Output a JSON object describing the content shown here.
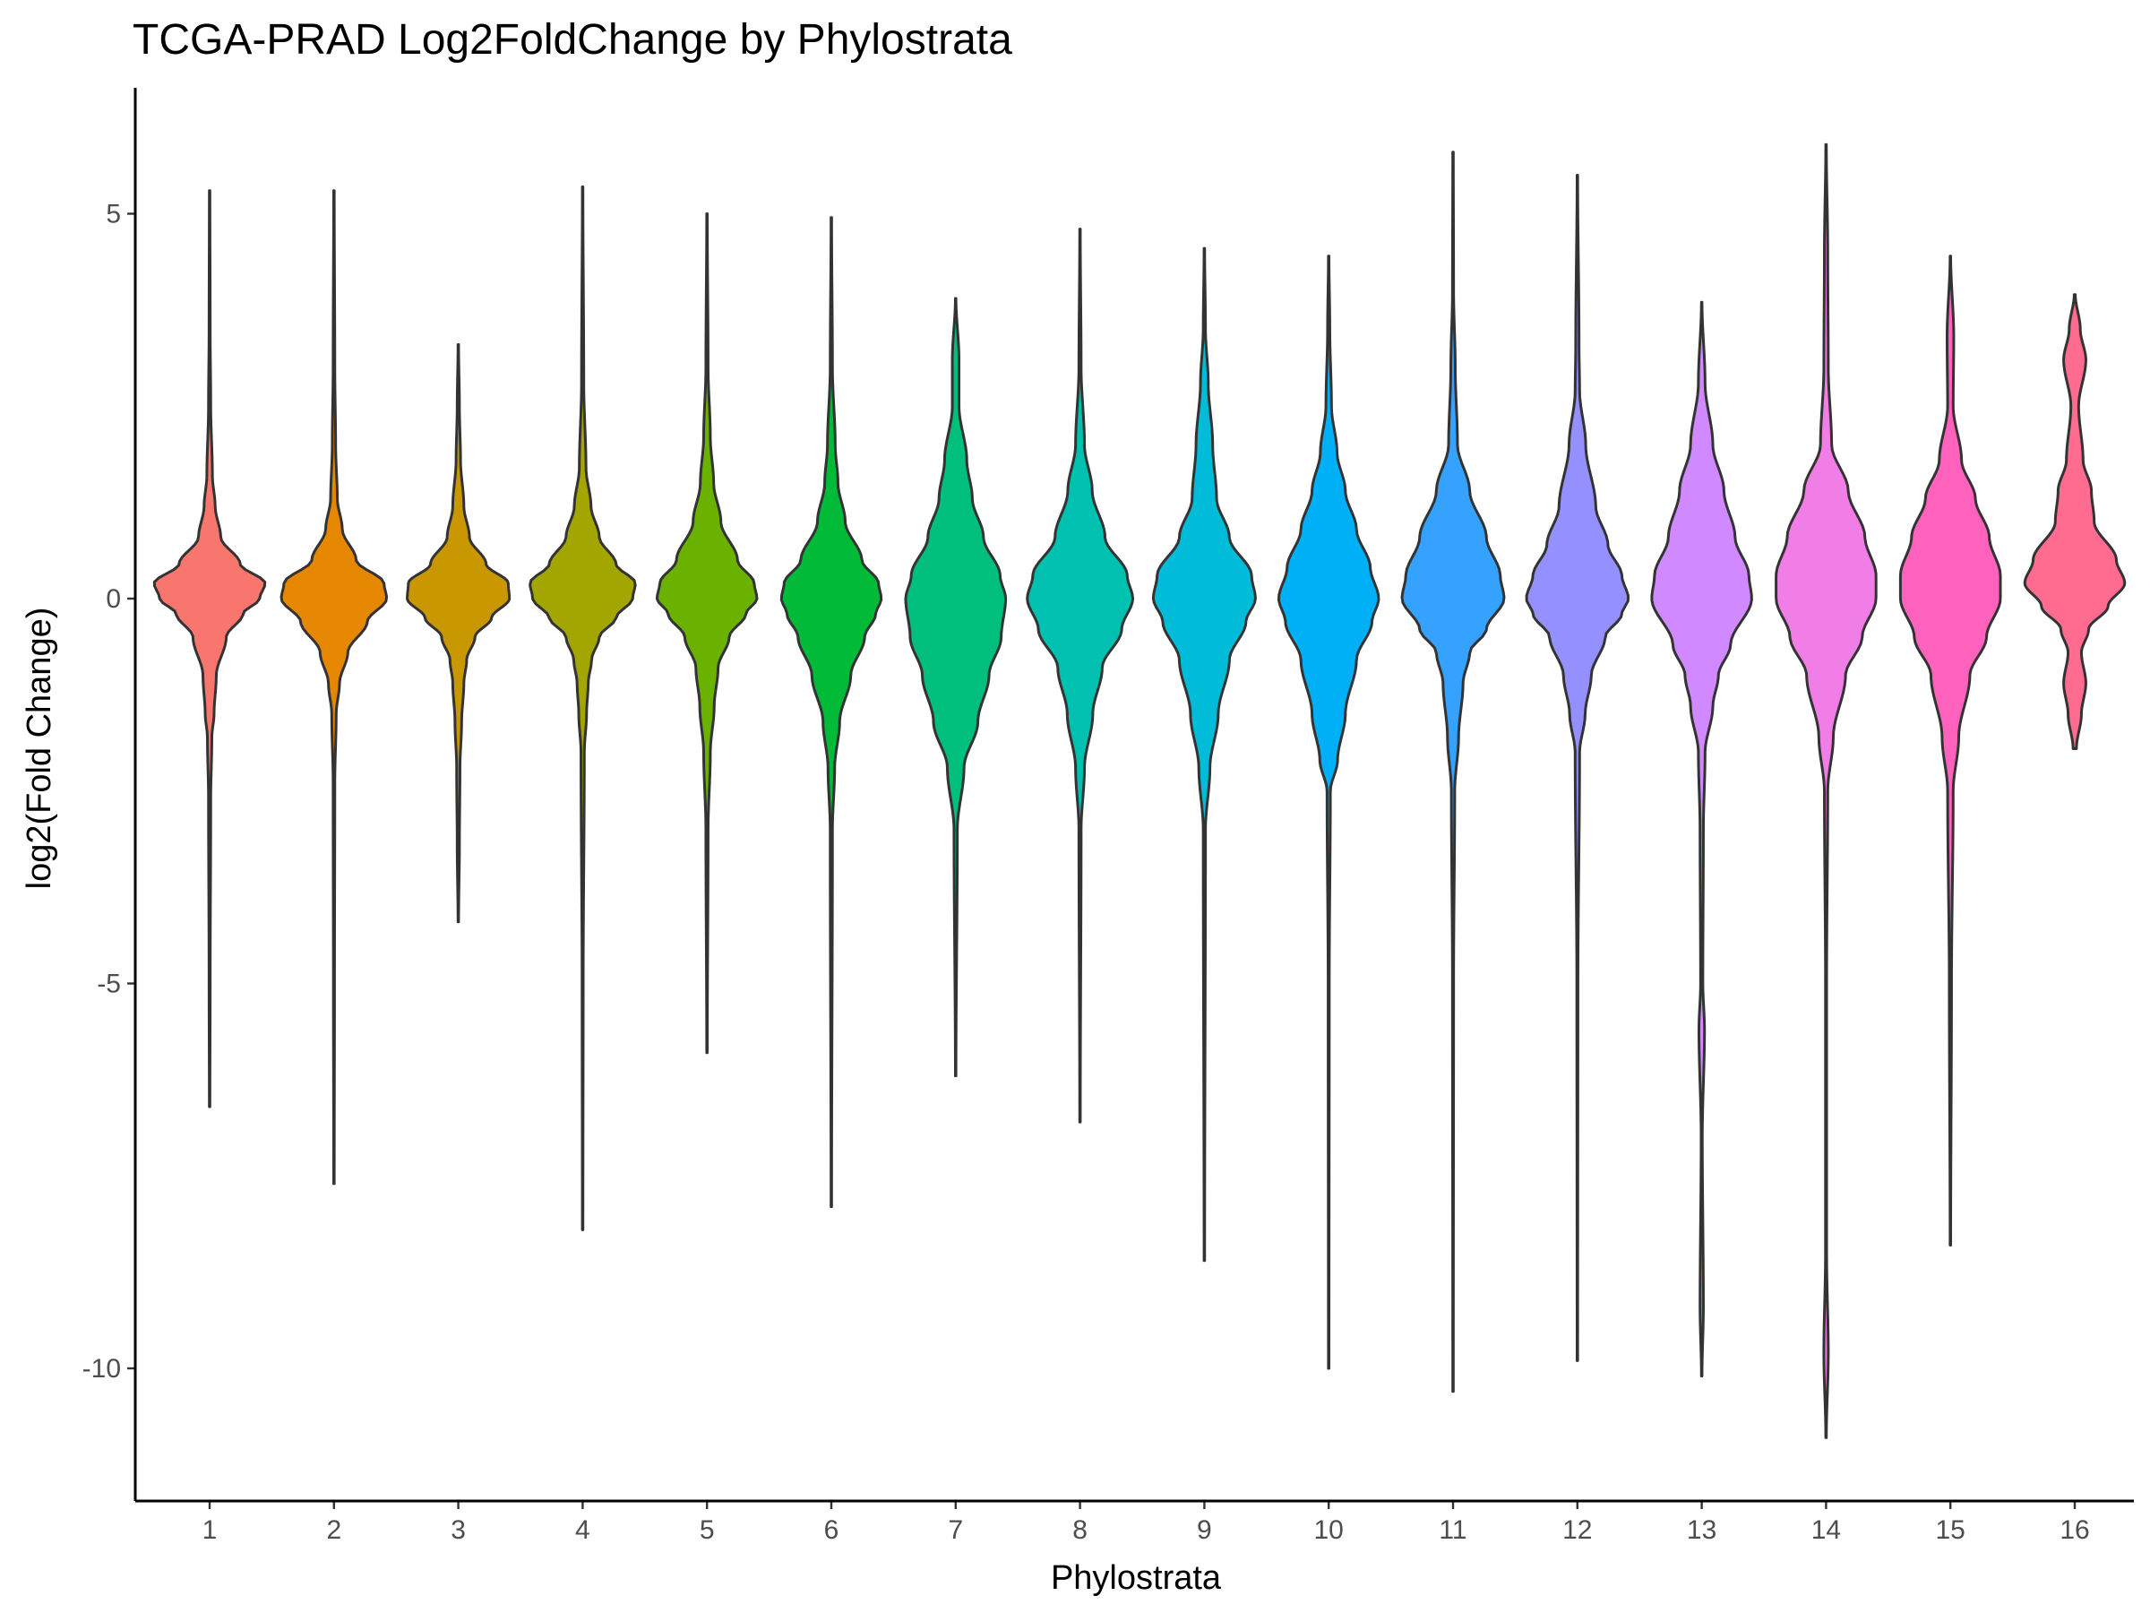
{
  "chart_data": {
    "type": "violin",
    "title": "TCGA-PRAD Log2FoldChange by Phylostrata",
    "xlabel": "Phylostrata",
    "ylabel": "log2(Fold Change)",
    "ylim": [
      -11.6,
      6.5
    ],
    "yticks": [
      5,
      0,
      -5,
      -10
    ],
    "ytick_labels": [
      "5",
      "0",
      "-5",
      "-10"
    ],
    "grid": false,
    "legend": "none",
    "categories": [
      "1",
      "2",
      "3",
      "4",
      "5",
      "6",
      "7",
      "8",
      "9",
      "10",
      "11",
      "12",
      "13",
      "14",
      "15",
      "16"
    ],
    "series": [
      {
        "category": "1",
        "color": "#F8766D",
        "min": -6.6,
        "max": 5.3,
        "profile": [
          [
            -6.6,
            0.005
          ],
          [
            -5,
            0.01
          ],
          [
            -2.6,
            0.02
          ],
          [
            -1.8,
            0.04
          ],
          [
            -1.5,
            0.08
          ],
          [
            -1,
            0.12
          ],
          [
            -0.5,
            0.3
          ],
          [
            -0.2,
            0.6
          ],
          [
            0,
            0.9
          ],
          [
            0.2,
            1.0
          ],
          [
            0.45,
            0.55
          ],
          [
            0.8,
            0.2
          ],
          [
            1.2,
            0.1
          ],
          [
            1.6,
            0.05
          ],
          [
            2.5,
            0.02
          ],
          [
            3.5,
            0.01
          ],
          [
            5.3,
            0.005
          ]
        ]
      },
      {
        "category": "2",
        "color": "#E58700",
        "min": -7.6,
        "max": 5.3,
        "profile": [
          [
            -7.6,
            0.005
          ],
          [
            -5,
            0.01
          ],
          [
            -2.4,
            0.015
          ],
          [
            -1.5,
            0.04
          ],
          [
            -1.1,
            0.1
          ],
          [
            -0.7,
            0.25
          ],
          [
            -0.3,
            0.6
          ],
          [
            0,
            0.95
          ],
          [
            0.2,
            0.9
          ],
          [
            0.5,
            0.4
          ],
          [
            0.9,
            0.15
          ],
          [
            1.3,
            0.06
          ],
          [
            2,
            0.03
          ],
          [
            3,
            0.015
          ],
          [
            5.3,
            0.005
          ]
        ]
      },
      {
        "category": "3",
        "color": "#C99800",
        "min": -4.2,
        "max": 3.3,
        "profile": [
          [
            -4.2,
            0.005
          ],
          [
            -3.2,
            0.02
          ],
          [
            -2.2,
            0.03
          ],
          [
            -1.6,
            0.06
          ],
          [
            -1.1,
            0.1
          ],
          [
            -0.8,
            0.15
          ],
          [
            -0.5,
            0.3
          ],
          [
            -0.25,
            0.6
          ],
          [
            0,
            0.92
          ],
          [
            0.2,
            0.9
          ],
          [
            0.45,
            0.5
          ],
          [
            0.8,
            0.2
          ],
          [
            1.2,
            0.1
          ],
          [
            1.8,
            0.04
          ],
          [
            2.5,
            0.02
          ],
          [
            3.3,
            0.005
          ]
        ]
      },
      {
        "category": "4",
        "color": "#A3A500",
        "min": -8.2,
        "max": 5.35,
        "profile": [
          [
            -8.2,
            0.005
          ],
          [
            -5,
            0.01
          ],
          [
            -2,
            0.03
          ],
          [
            -1.5,
            0.07
          ],
          [
            -1.1,
            0.1
          ],
          [
            -0.8,
            0.16
          ],
          [
            -0.5,
            0.3
          ],
          [
            -0.25,
            0.6
          ],
          [
            0,
            0.9
          ],
          [
            0.2,
            0.95
          ],
          [
            0.45,
            0.6
          ],
          [
            0.8,
            0.3
          ],
          [
            1.2,
            0.15
          ],
          [
            1.7,
            0.06
          ],
          [
            2.8,
            0.02
          ],
          [
            5.35,
            0.005
          ]
        ]
      },
      {
        "category": "5",
        "color": "#6BB100",
        "min": -5.9,
        "max": 5.0,
        "profile": [
          [
            -5.9,
            0.005
          ],
          [
            -3,
            0.02
          ],
          [
            -2,
            0.06
          ],
          [
            -1.4,
            0.13
          ],
          [
            -0.9,
            0.2
          ],
          [
            -0.5,
            0.4
          ],
          [
            -0.2,
            0.7
          ],
          [
            0,
            0.9
          ],
          [
            0.2,
            0.85
          ],
          [
            0.5,
            0.55
          ],
          [
            1,
            0.25
          ],
          [
            1.5,
            0.12
          ],
          [
            2.1,
            0.06
          ],
          [
            3,
            0.02
          ],
          [
            5,
            0.005
          ]
        ]
      },
      {
        "category": "6",
        "color": "#00BA38",
        "min": -7.9,
        "max": 4.95,
        "profile": [
          [
            -7.9,
            0.005
          ],
          [
            -3,
            0.02
          ],
          [
            -2.2,
            0.06
          ],
          [
            -1.6,
            0.15
          ],
          [
            -1,
            0.35
          ],
          [
            -0.5,
            0.6
          ],
          [
            -0.2,
            0.8
          ],
          [
            0,
            0.9
          ],
          [
            0.2,
            0.85
          ],
          [
            0.5,
            0.55
          ],
          [
            1,
            0.25
          ],
          [
            1.5,
            0.12
          ],
          [
            2,
            0.07
          ],
          [
            3,
            0.02
          ],
          [
            4.95,
            0.005
          ]
        ]
      },
      {
        "category": "7",
        "color": "#00BF7D",
        "min": -6.2,
        "max": 3.9,
        "profile": [
          [
            -6.2,
            0.005
          ],
          [
            -3,
            0.03
          ],
          [
            -2.2,
            0.15
          ],
          [
            -1.6,
            0.4
          ],
          [
            -1,
            0.6
          ],
          [
            -0.5,
            0.82
          ],
          [
            0,
            0.9
          ],
          [
            0.3,
            0.8
          ],
          [
            0.8,
            0.5
          ],
          [
            1.3,
            0.3
          ],
          [
            1.8,
            0.2
          ],
          [
            2.5,
            0.06
          ],
          [
            3.1,
            0.06
          ],
          [
            3.9,
            0.005
          ]
        ]
      },
      {
        "category": "8",
        "color": "#00C0AF",
        "min": -6.8,
        "max": 4.8,
        "profile": [
          [
            -6.8,
            0.005
          ],
          [
            -3,
            0.02
          ],
          [
            -2.2,
            0.08
          ],
          [
            -1.5,
            0.23
          ],
          [
            -0.9,
            0.4
          ],
          [
            -0.4,
            0.75
          ],
          [
            0,
            0.95
          ],
          [
            0.3,
            0.85
          ],
          [
            0.8,
            0.45
          ],
          [
            1.4,
            0.22
          ],
          [
            2,
            0.08
          ],
          [
            3,
            0.02
          ],
          [
            4.8,
            0.005
          ]
        ]
      },
      {
        "category": "9",
        "color": "#00BCD8",
        "min": -8.6,
        "max": 4.55,
        "profile": [
          [
            -8.6,
            0.005
          ],
          [
            -3,
            0.02
          ],
          [
            -2.2,
            0.1
          ],
          [
            -1.5,
            0.25
          ],
          [
            -0.8,
            0.45
          ],
          [
            -0.3,
            0.75
          ],
          [
            0,
            0.92
          ],
          [
            0.3,
            0.85
          ],
          [
            0.8,
            0.45
          ],
          [
            1.3,
            0.22
          ],
          [
            2,
            0.15
          ],
          [
            2.8,
            0.07
          ],
          [
            3.5,
            0.02
          ],
          [
            4.55,
            0.005
          ]
        ]
      },
      {
        "category": "10",
        "color": "#00B0F6",
        "min": -10.0,
        "max": 4.45,
        "profile": [
          [
            -10,
            0.005
          ],
          [
            -5,
            0.01
          ],
          [
            -2.5,
            0.03
          ],
          [
            -2.1,
            0.16
          ],
          [
            -1.5,
            0.3
          ],
          [
            -0.8,
            0.5
          ],
          [
            -0.3,
            0.78
          ],
          [
            0,
            0.9
          ],
          [
            0.4,
            0.75
          ],
          [
            0.9,
            0.5
          ],
          [
            1.4,
            0.3
          ],
          [
            1.9,
            0.15
          ],
          [
            2.5,
            0.05
          ],
          [
            3.5,
            0.02
          ],
          [
            4.45,
            0.005
          ]
        ]
      },
      {
        "category": "11",
        "color": "#35A2FF",
        "min": -10.3,
        "max": 5.8,
        "profile": [
          [
            -10.3,
            0.005
          ],
          [
            -5,
            0.01
          ],
          [
            -2.5,
            0.03
          ],
          [
            -1.8,
            0.1
          ],
          [
            -1.1,
            0.18
          ],
          [
            -0.7,
            0.3
          ],
          [
            -0.4,
            0.6
          ],
          [
            0,
            0.92
          ],
          [
            0.3,
            0.85
          ],
          [
            0.8,
            0.6
          ],
          [
            1.4,
            0.3
          ],
          [
            2,
            0.08
          ],
          [
            3,
            0.04
          ],
          [
            4,
            0.01
          ],
          [
            5.8,
            0.005
          ]
        ]
      },
      {
        "category": "12",
        "color": "#9590FF",
        "min": -9.9,
        "max": 5.5,
        "profile": [
          [
            -9.9,
            0.005
          ],
          [
            -5,
            0.01
          ],
          [
            -2,
            0.04
          ],
          [
            -1.5,
            0.14
          ],
          [
            -1,
            0.25
          ],
          [
            -0.5,
            0.5
          ],
          [
            -0.2,
            0.8
          ],
          [
            0,
            0.92
          ],
          [
            0.3,
            0.8
          ],
          [
            0.7,
            0.55
          ],
          [
            1.2,
            0.33
          ],
          [
            2,
            0.15
          ],
          [
            2.7,
            0.04
          ],
          [
            3.3,
            0.03
          ],
          [
            5.5,
            0.005
          ]
        ]
      },
      {
        "category": "13",
        "color": "#D089FF",
        "min": -10.1,
        "max": 3.85,
        "profile": [
          [
            -10.1,
            0.005
          ],
          [
            -9.2,
            0.03
          ],
          [
            -7,
            0.01
          ],
          [
            -5.6,
            0.05
          ],
          [
            -5,
            0.02
          ],
          [
            -3,
            0.03
          ],
          [
            -2,
            0.06
          ],
          [
            -1.4,
            0.2
          ],
          [
            -1,
            0.3
          ],
          [
            -0.6,
            0.52
          ],
          [
            0,
            0.9
          ],
          [
            0.3,
            0.85
          ],
          [
            0.8,
            0.6
          ],
          [
            1.4,
            0.4
          ],
          [
            2,
            0.2
          ],
          [
            2.8,
            0.06
          ],
          [
            3.85,
            0.005
          ]
        ]
      },
      {
        "category": "14",
        "color": "#F17DE6",
        "min": -10.9,
        "max": 5.9,
        "profile": [
          [
            -10.9,
            0.005
          ],
          [
            -9.8,
            0.04
          ],
          [
            -8.5,
            0.01
          ],
          [
            -5,
            0.01
          ],
          [
            -2.5,
            0.03
          ],
          [
            -1.8,
            0.13
          ],
          [
            -1,
            0.35
          ],
          [
            -0.5,
            0.65
          ],
          [
            0,
            0.9
          ],
          [
            0.3,
            0.9
          ],
          [
            0.8,
            0.7
          ],
          [
            1.4,
            0.4
          ],
          [
            2,
            0.1
          ],
          [
            3,
            0.04
          ],
          [
            4.5,
            0.03
          ],
          [
            5.9,
            0.005
          ]
        ]
      },
      {
        "category": "15",
        "color": "#FF62BD",
        "min": -8.4,
        "max": 4.45,
        "profile": [
          [
            -8.4,
            0.005
          ],
          [
            -5,
            0.02
          ],
          [
            -2.5,
            0.05
          ],
          [
            -1.8,
            0.15
          ],
          [
            -1,
            0.35
          ],
          [
            -0.5,
            0.65
          ],
          [
            0,
            0.9
          ],
          [
            0.3,
            0.9
          ],
          [
            0.8,
            0.7
          ],
          [
            1.3,
            0.45
          ],
          [
            1.8,
            0.2
          ],
          [
            2.5,
            0.05
          ],
          [
            3.4,
            0.06
          ],
          [
            4.45,
            0.005
          ]
        ]
      },
      {
        "category": "16",
        "color": "#FF6C90",
        "min": -1.95,
        "max": 3.95,
        "profile": [
          [
            -1.95,
            0.03
          ],
          [
            -1.5,
            0.12
          ],
          [
            -1.1,
            0.2
          ],
          [
            -0.7,
            0.12
          ],
          [
            -0.4,
            0.25
          ],
          [
            -0.1,
            0.6
          ],
          [
            0.2,
            0.9
          ],
          [
            0.5,
            0.75
          ],
          [
            1,
            0.35
          ],
          [
            1.4,
            0.3
          ],
          [
            1.8,
            0.15
          ],
          [
            2.5,
            0.07
          ],
          [
            3.1,
            0.2
          ],
          [
            3.5,
            0.1
          ],
          [
            3.95,
            0.01
          ]
        ]
      }
    ]
  }
}
